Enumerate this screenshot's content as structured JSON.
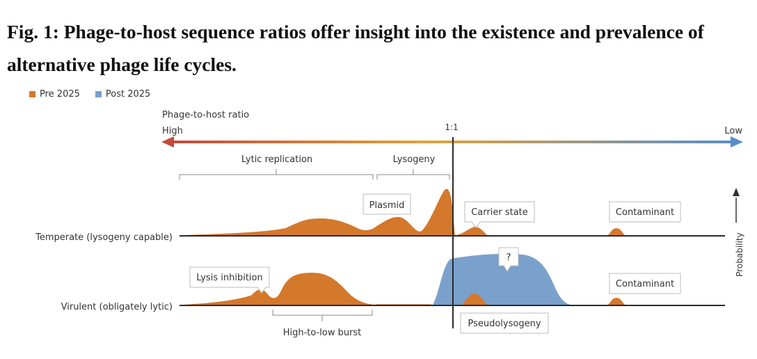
{
  "figure": {
    "title_line1": "Fig. 1: Phage-to-host sequence ratios offer insight into the existence and prevalence of",
    "title_line2": "alternative phage life cycles."
  },
  "legend": {
    "pre": {
      "label": "Pre 2025",
      "color": "#d4782c"
    },
    "post": {
      "label": "Post 2025",
      "color": "#7aa0cc"
    }
  },
  "axis": {
    "title": "Phage-to-host ratio",
    "high_label": "High",
    "low_label": "Low",
    "center_label": "1:1",
    "gradient_colors": [
      "#c44a3a",
      "#e0a33c",
      "#5a8ec9"
    ]
  },
  "brackets": {
    "lytic": "Lytic replication",
    "lysogeny": "Lysogeny",
    "burst": "High-to-low burst"
  },
  "rows": {
    "temperate": "Temperate (lysogeny capable)",
    "virulent": "Virulent (obligately lytic)"
  },
  "probability_label": "Probability",
  "callouts": {
    "plasmid": "Plasmid",
    "carrier_state": "Carrier state",
    "contaminant_top": "Contaminant",
    "lysis_inhibition": "Lysis inhibition",
    "question": "?",
    "contaminant_bottom": "Contaminant",
    "pseudolysogeny": "Pseudolysogeny"
  },
  "line_color": "#2a2a2a"
}
